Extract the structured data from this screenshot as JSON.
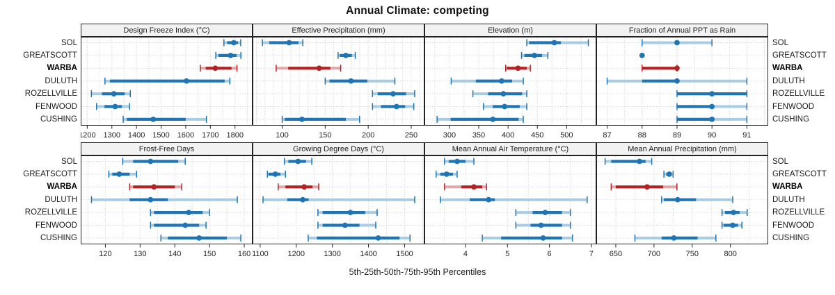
{
  "title": "Annual Climate: competing",
  "caption": "5th-25th-50th-75th-95th Percentiles",
  "colors": {
    "series": "#1F74B4",
    "series_light": "#A7CCE4",
    "highlight": "#B22222",
    "highlight_light": "#E4A6A6",
    "strip_bg": "#F2F2F2",
    "grid": "#C9C9C9",
    "border": "#222222",
    "tick_text": "#222222"
  },
  "chart_data": {
    "type": "scatter",
    "variant": "dot-whisker percentile intervals (5th-25th-50th-75th-95th)",
    "legend_position": "none",
    "grid": "dotted",
    "stations": [
      "SOL",
      "GREATSCOTT",
      "WARBA",
      "DULUTH",
      "ROZELLVILLE",
      "FENWOOD",
      "CUSHING"
    ],
    "highlighted_station": "WARBA",
    "panels": [
      {
        "title": "Design Freeze Index (°C)",
        "xlim": [
          1175,
          1870
        ],
        "tick_values": [
          1200,
          1300,
          1400,
          1500,
          1600,
          1700,
          1800
        ],
        "tick_labels": [
          "1200",
          "1300",
          "1400",
          "1500",
          "1600",
          "1700",
          "1800"
        ],
        "grid_step": 50,
        "values": [
          [
            1755,
            1768,
            1795,
            1812,
            1823
          ],
          [
            1722,
            1733,
            1782,
            1806,
            1824
          ],
          [
            1659,
            1681,
            1720,
            1786,
            1808
          ],
          [
            1272,
            1292,
            1603,
            1758,
            1779
          ],
          [
            1217,
            1260,
            1308,
            1352,
            1375
          ],
          [
            1238,
            1270,
            1313,
            1341,
            1372
          ],
          [
            1346,
            1361,
            1468,
            1600,
            1684
          ]
        ]
      },
      {
        "title": "Effective Precipitation (mm)",
        "xlim": [
          66,
          265
        ],
        "tick_values": [
          100,
          150,
          200,
          250
        ],
        "tick_labels": [
          "100",
          "150",
          "200",
          "250"
        ],
        "grid_step": 10,
        "values": [
          [
            77,
            85,
            108,
            119,
            124
          ],
          [
            165,
            167,
            174,
            181,
            185
          ],
          [
            93,
            107,
            143,
            156,
            168
          ],
          [
            150,
            155,
            180,
            199,
            231
          ],
          [
            205,
            211,
            229,
            244,
            254
          ],
          [
            205,
            215,
            233,
            243,
            253
          ],
          [
            100,
            103,
            123,
            174,
            190
          ]
        ]
      },
      {
        "title": "Elevation (m)",
        "xlim": [
          258,
          550
        ],
        "tick_values": [
          300,
          350,
          400,
          450,
          500
        ],
        "tick_labels": [
          "300",
          "350",
          "400",
          "450",
          "500"
        ],
        "grid_step": 25,
        "values": [
          [
            432,
            436,
            479,
            490,
            537
          ],
          [
            423,
            428,
            445,
            458,
            468
          ],
          [
            396,
            398,
            417,
            432,
            438
          ],
          [
            303,
            345,
            389,
            407,
            426
          ],
          [
            340,
            366,
            392,
            424,
            432
          ],
          [
            358,
            374,
            394,
            420,
            432
          ],
          [
            279,
            302,
            374,
            418,
            426
          ]
        ]
      },
      {
        "title": "Fraction of Annual PPT as Rain",
        "xlim": [
          86.7,
          91.6
        ],
        "tick_values": [
          87,
          88,
          89,
          90,
          91
        ],
        "tick_labels": [
          "87",
          "88",
          "89",
          "90",
          "91"
        ],
        "grid_step": 0.5,
        "values": [
          [
            88,
            89,
            89,
            89,
            90
          ],
          [
            88,
            88,
            88,
            88,
            88
          ],
          [
            88,
            88,
            89,
            89,
            89
          ],
          [
            87,
            88,
            89,
            89,
            91
          ],
          [
            89,
            89,
            90,
            91,
            91
          ],
          [
            89,
            89,
            90,
            90,
            91
          ],
          [
            89,
            89,
            90,
            90,
            91
          ]
        ]
      },
      {
        "title": "Frost-Free Days",
        "xlim": [
          113,
          162.3
        ],
        "tick_values": [
          120,
          130,
          140,
          150,
          160
        ],
        "tick_labels": [
          "120",
          "130",
          "140",
          "150",
          "160"
        ],
        "grid_step": 5,
        "values": [
          [
            125,
            128,
            133,
            141,
            143
          ],
          [
            121,
            122,
            124,
            127,
            129
          ],
          [
            127,
            128,
            134,
            140,
            142
          ],
          [
            116,
            127,
            133,
            138,
            158
          ],
          [
            133,
            134,
            144,
            148,
            150
          ],
          [
            133,
            134,
            143,
            147,
            149
          ],
          [
            136,
            138,
            147,
            155,
            159
          ]
        ]
      },
      {
        "title": "Growing Degree Days (°C)",
        "xlim": [
          1080,
          1554
        ],
        "tick_values": [
          1100,
          1200,
          1300,
          1400,
          1500
        ],
        "tick_labels": [
          "1100",
          "1200",
          "1300",
          "1400",
          "1500"
        ],
        "grid_step": 50,
        "values": [
          [
            1167,
            1178,
            1205,
            1227,
            1243
          ],
          [
            1120,
            1123,
            1142,
            1156,
            1170
          ],
          [
            1150,
            1170,
            1222,
            1245,
            1262
          ],
          [
            1108,
            1175,
            1218,
            1234,
            1528
          ],
          [
            1260,
            1273,
            1350,
            1391,
            1424
          ],
          [
            1260,
            1273,
            1335,
            1375,
            1420
          ],
          [
            1233,
            1257,
            1427,
            1486,
            1515
          ]
        ]
      },
      {
        "title": "Mean Annual Air Temperature (°C)",
        "xlim": [
          3.03,
          7.11
        ],
        "tick_values": [
          4,
          5,
          6,
          7
        ],
        "tick_labels": [
          "4",
          "5",
          "6",
          "7"
        ],
        "grid_step": 0.5,
        "values": [
          [
            3.5,
            3.6,
            3.8,
            4.0,
            4.2
          ],
          [
            3.3,
            3.4,
            3.55,
            3.7,
            3.8
          ],
          [
            3.5,
            3.9,
            4.2,
            4.4,
            4.5
          ],
          [
            3.4,
            4.1,
            4.55,
            4.7,
            6.9
          ],
          [
            5.2,
            5.6,
            5.9,
            6.3,
            6.5
          ],
          [
            5.2,
            5.55,
            5.8,
            6.3,
            6.5
          ],
          [
            4.4,
            4.85,
            5.85,
            6.3,
            6.55
          ]
        ]
      },
      {
        "title": "Mean Annual Precipitation (mm)",
        "xlim": [
          625,
          849
        ],
        "tick_values": [
          650,
          700,
          750,
          800
        ],
        "tick_labels": [
          "650",
          "700",
          "750",
          "800"
        ],
        "grid_step": 25,
        "values": [
          [
            636,
            644,
            681,
            689,
            697
          ],
          [
            713,
            716,
            720,
            722,
            725
          ],
          [
            644,
            650,
            691,
            712,
            730
          ],
          [
            710,
            713,
            731,
            755,
            803
          ],
          [
            789,
            793,
            804,
            812,
            822
          ],
          [
            789,
            791,
            803,
            810,
            815
          ],
          [
            675,
            710,
            726,
            757,
            781
          ]
        ]
      }
    ]
  }
}
